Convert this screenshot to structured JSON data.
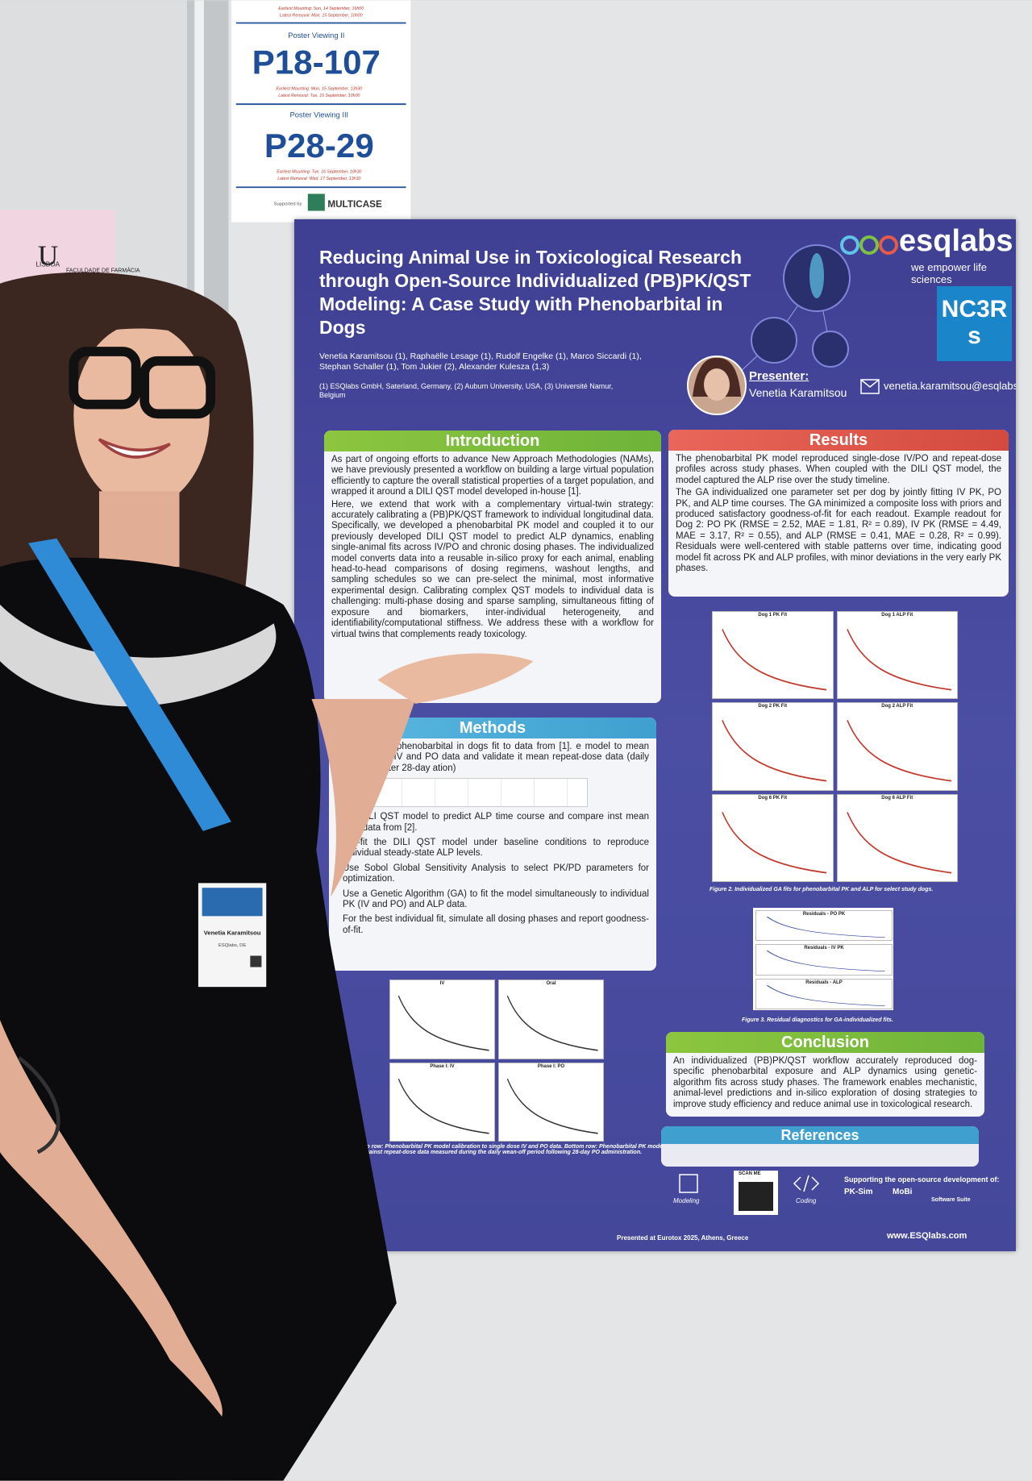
{
  "sign": {
    "top_lines": [
      "Earliest Mounting: Sun, 14 September, 16h00",
      "Latest Removal: Mon, 15 September, 10h00"
    ],
    "viewing2": "Poster Viewing II",
    "code2": "P18-107",
    "lines2": [
      "Earliest Mounting: Mon, 15 September, 13h30",
      "Latest Removal: Tue, 16 September, 10h00"
    ],
    "viewing3": "Poster Viewing III",
    "code3": "P28-29",
    "lines3": [
      "Earliest Mounting: Tue, 16 September, 10h30",
      "Latest Removal: Wed, 17 September, 13h30"
    ],
    "supported": "Supported by",
    "sponsor": "MULTICASE"
  },
  "left_panel": {
    "lisboa": "LISBOA",
    "faculdade": "FACULDADE DE FARMÁCIA"
  },
  "poster": {
    "title": "Reducing Animal Use in Toxicological Research through Open-Source Individualized (PB)PK/QST Modeling: A Case Study with Phenobarbital in Dogs",
    "authors": "Venetia Karamitsou (1), Raphaëlle Lesage (1), Rudolf Engelke (1), Marco Siccardi (1), Stephan Schaller (1), Tom Jukier (2), Alexander Kulesza (1,3)",
    "affiliations": "(1) ESQlabs GmbH, Saterland, Germany, (2) Auburn University, USA, (3) Université Namur, Belgium",
    "brand": "esqlabs",
    "tagline": "we empower life sciences",
    "nc3rs": "NC3Rs",
    "presenter_label": "Presenter:",
    "presenter": "Venetia Karamitsou",
    "email": "venetia.karamitsou@esqlabs.com",
    "intro": {
      "heading": "Introduction",
      "paragraphs": [
        "As part of ongoing efforts to advance New Approach Methodologies (NAMs), we have previously presented a workflow on building a large virtual population efficiently to capture the overall statistical properties of a target population, and wrapped it around a DILI QST model developed in-house [1].",
        "Here, we extend that work with a complementary virtual-twin strategy: accurately calibrating a (PB)PK/QST framework to individual longitudinal data. Specifically, we developed a phenobarbital PK model and coupled it to our previously developed DILI QST model to predict ALP dynamics, enabling single-animal fits across IV/PO and chronic dosing phases. The individualized model converts data into a reusable in-silico proxy for each animal, enabling head-to-head comparisons of dosing regimens, washout lengths, and sampling schedules so we can pre-select the minimal, most informative experimental design. Calibrating complex QST models to individual data is challenging: multi-phase dosing and sparse sampling, simultaneous fitting of exposure and biomarkers, inter-individual heterogeneity, and identifiability/computational stiffness. We address these with a workflow for virtual twins that complements ready toxicology."
      ]
    },
    "methods": {
      "heading": "Methods",
      "items": [
        "K model for phenobarbital in dogs fit to data from [1]. e model to mean single dose IV and PO data and validate it mean repeat-dose data (daily wean-off after 28-day ation)",
        "the DILI QST model to predict ALP time course and compare inst mean ALP data from [2].",
        "Pre-fit the DILI QST model under baseline conditions to reproduce individual steady-state ALP levels.",
        "Use Sobol Global Sensitivity Analysis to select PK/PD parameters for optimization.",
        "Use a Genetic Algorithm (GA) to fit the model simultaneously to individual PK (IV and PO) and ALP data.",
        "For the best individual fit, simulate all dosing phases and report goodness-of-fit."
      ]
    },
    "fig1": {
      "panels": [
        "IV",
        "Oral",
        "Phase I: IV",
        "Phase I: PO"
      ],
      "caption": "Figure 1. Top row: Phenobarbital PK model calibration to single dose IV and PO data. Bottom row: Phenobarbital PK model validation against repeat-dose data measured during the daily wean-off period following 28-day PO administration."
    },
    "results": {
      "heading": "Results",
      "paragraphs": [
        "The phenobarbital PK model reproduced single-dose IV/PO and repeat-dose profiles across study phases. When coupled with the DILI QST model, the model captured the ALP rise over the study timeline.",
        "The GA individualized one parameter set per dog by jointly fitting IV PK, PO PK, and ALP time courses. The GA minimized a composite loss with priors and produced satisfactory goodness-of-fit for each readout. Example readout for Dog 2: PO PK (RMSE = 2.52, MAE = 1.81, R² = 0.89), IV PK (RMSE = 4.49, MAE = 3.17, R² = 0.55), and ALP (RMSE = 0.41, MAE = 0.28, R² = 0.99). Residuals were well-centered with stable patterns over time, indicating good model fit across PK and ALP profiles, with minor deviations in the very early PK phases."
      ]
    },
    "fig2": {
      "panels": [
        "Dog 1 PK Fit",
        "Dog 1 ALP Fit",
        "Dog 2 PK Fit",
        "Dog 2 ALP Fit",
        "Dog 6 PK Fit",
        "Dog 6 ALP Fit"
      ],
      "caption": "Figure 2. Individualized GA fits for phenobarbital PK and ALP for select study dogs."
    },
    "fig3": {
      "panels": [
        "Residuals - PO PK",
        "Residuals - IV PK",
        "Residuals - ALP"
      ],
      "caption": "Figure 3. Residual diagnostics for GA-individualized fits."
    },
    "conclusion": {
      "heading": "Conclusion",
      "text": "An individualized (PB)PK/QST workflow accurately reproduced dog-specific phenobarbital exposure and ALP dynamics using genetic-algorithm fits across study phases. The framework enables mechanistic, animal-level predictions and in-silico exploration of dosing strategies to improve study efficiency and reduce animal use in toxicological research."
    },
    "references": {
      "heading": "References"
    },
    "footer": {
      "modeling": "Modeling",
      "scan": "SCAN ME",
      "coding": "Coding",
      "support": "Supporting the open-source development of:",
      "pksim": "PK-Sim",
      "mobi": "MoBi",
      "osp": "Software Suite",
      "presented": "Presented at Eurotox 2025, Athens, Greece",
      "web": "www.ESQlabs.com"
    }
  },
  "badge": {
    "name": "Venetia Karamitsou",
    "org": "ESQlabs, DE"
  }
}
